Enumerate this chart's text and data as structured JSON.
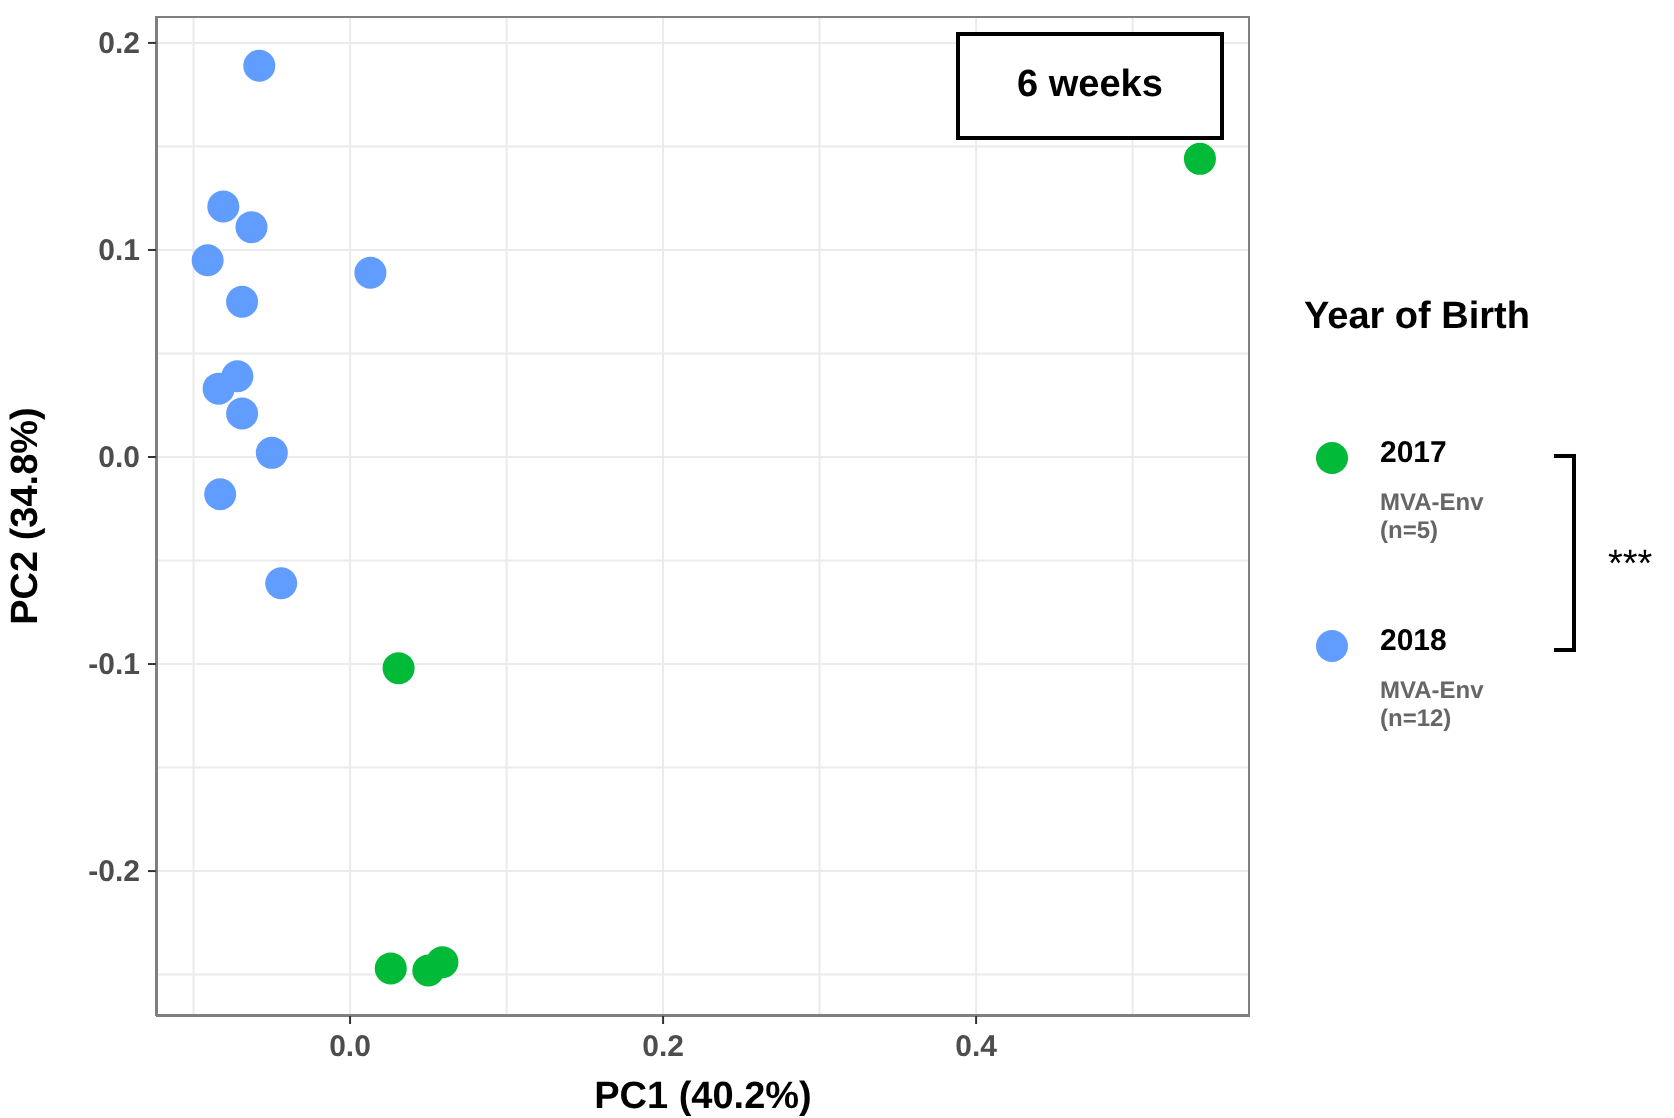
{
  "chart_data": {
    "type": "scatter",
    "xlabel": "PC1 (40.2%)",
    "ylabel": "PC2 (34.8%)",
    "legend_title": "Year of Birth",
    "annotations": [
      "6 weeks",
      "MVA-Env (n=5)",
      "MVA-Env (n=12)",
      "***"
    ],
    "xlim": [
      -0.124,
      0.575
    ],
    "ylim": [
      -0.27,
      0.213
    ],
    "xticks": [
      {
        "value": -0.1,
        "label": null
      },
      {
        "value": 0,
        "label": "0.0"
      },
      {
        "value": 0.1,
        "label": null
      },
      0.2,
      {
        "value": 0.3,
        "label": null
      },
      0.4,
      {
        "value": 0.5,
        "label": null
      }
    ],
    "yticks": [
      {
        "value": -0.25,
        "label": null
      },
      -0.2,
      {
        "value": -0.15,
        "label": null
      },
      -0.1,
      {
        "value": -0.05,
        "label": null
      },
      {
        "value": 0,
        "label": "0.0"
      },
      {
        "value": 0.05,
        "label": null
      },
      0.1,
      {
        "value": 0.15,
        "label": null
      },
      0.2
    ],
    "grid": true,
    "legend": "right",
    "marker": "circle",
    "series": [
      {
        "name": "2017",
        "color": "#00ba38",
        "x": [
          0.543,
          0.031,
          0.026,
          0.05,
          0.059
        ],
        "values": [
          0.144,
          -0.102,
          -0.247,
          -0.248,
          -0.244
        ]
      },
      {
        "name": "2018",
        "color": "#619cff",
        "x": [
          -0.058,
          -0.081,
          -0.063,
          -0.091,
          0.013,
          -0.069,
          -0.072,
          -0.084,
          -0.069,
          -0.05,
          -0.083,
          -0.044
        ],
        "values": [
          0.189,
          0.121,
          0.111,
          0.095,
          0.089,
          0.075,
          0.039,
          0.033,
          0.021,
          0.002,
          -0.018,
          -0.061
        ]
      }
    ]
  }
}
